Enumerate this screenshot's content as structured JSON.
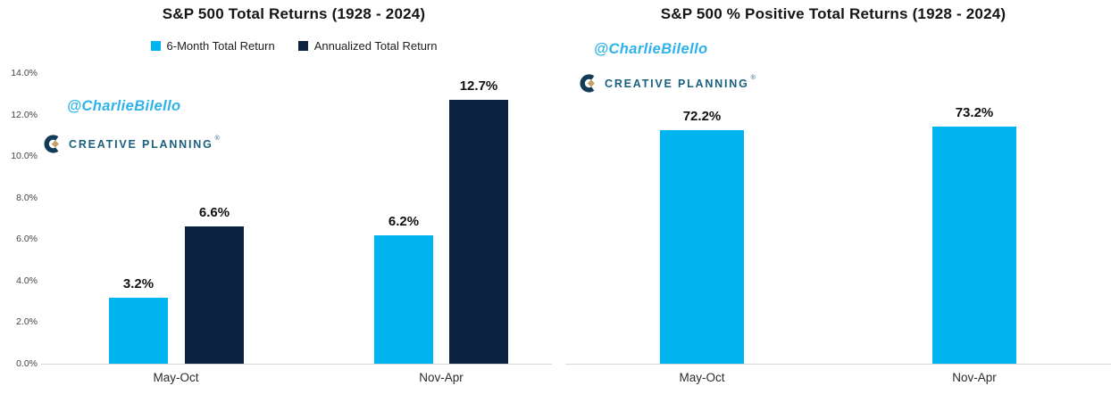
{
  "page": {
    "background": "#FFFFFF"
  },
  "colors": {
    "series_light_blue": "#00B5EF",
    "series_navy": "#0A2240",
    "axis_line": "#D9D9D9",
    "title_text": "#151515",
    "tick_text": "#454545",
    "watermark_blue": "#2DB3EA",
    "logo_blue": "#1B607F",
    "logo_mark_navy": "#123B56",
    "logo_gold": "#C2A266"
  },
  "watermark": {
    "handle": "@CharlieBilello",
    "logo_text": "CREATIVE PLANNING",
    "logo_reg": "®"
  },
  "chart_data": [
    {
      "type": "bar",
      "title": "S&P 500 Total Returns (1928 - 2024)",
      "categories": [
        "May-Oct",
        "Nov-Apr"
      ],
      "series": [
        {
          "name": "6-Month Total Return",
          "color": "#00B5EF",
          "values": [
            3.2,
            6.2
          ],
          "labels": [
            "3.2%",
            "6.2%"
          ]
        },
        {
          "name": "Annualized Total Return",
          "color": "#0A2240",
          "values": [
            6.6,
            12.7
          ],
          "labels": [
            "6.6%",
            "12.7%"
          ]
        }
      ],
      "xlabel": "",
      "ylabel": "",
      "ylim": [
        0,
        14
      ],
      "yticks": [
        {
          "value": 0,
          "label": "0.0%"
        },
        {
          "value": 2,
          "label": "2.0%"
        },
        {
          "value": 4,
          "label": "4.0%"
        },
        {
          "value": 6,
          "label": "6.0%"
        },
        {
          "value": 8,
          "label": "8.0%"
        },
        {
          "value": 10,
          "label": "10.0%"
        },
        {
          "value": 12,
          "label": "12.0%"
        },
        {
          "value": 14,
          "label": "14.0%"
        }
      ],
      "legend_position": "top",
      "grid": false
    },
    {
      "type": "bar",
      "title": "S&P 500 % Positive Total Returns (1928 - 2024)",
      "categories": [
        "May-Oct",
        "Nov-Apr"
      ],
      "series": [
        {
          "color": "#00B5EF",
          "values": [
            72.2,
            73.2
          ],
          "labels": [
            "72.2%",
            "73.2%"
          ]
        }
      ],
      "xlabel": "",
      "ylabel": "",
      "ylim": [
        0,
        82
      ],
      "yticks_visible": false,
      "legend_position": "none",
      "grid": false
    }
  ]
}
